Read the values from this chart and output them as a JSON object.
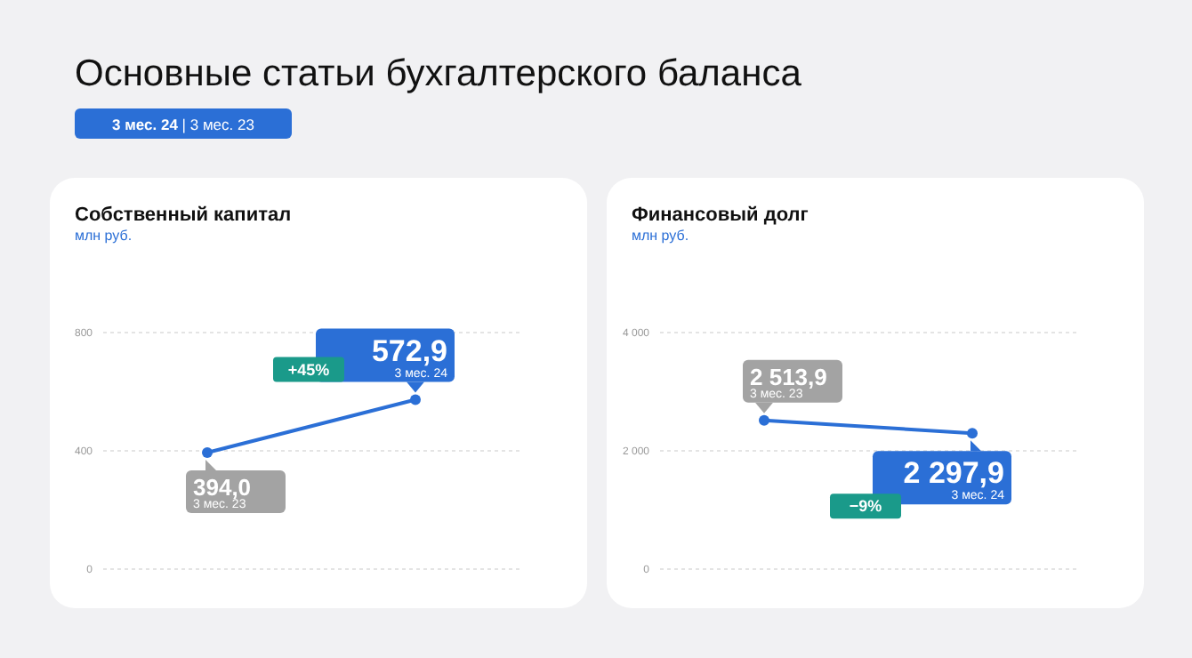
{
  "chart_data": [
    {
      "type": "line",
      "title": "Собственный капитал",
      "subtitle": "млн руб.",
      "annotations": [
        "Основные статьи бухгалтерского баланса",
        "3 мес. 24 | 3 мес. 23",
        "+45%"
      ],
      "categories": [
        "3 мес. 23",
        "3 мес. 24"
      ],
      "series": [
        {
          "color": "#2b6fd6",
          "values": [
            394.0,
            572.9
          ],
          "value_labels": [
            "394,0",
            "572,9"
          ]
        }
      ],
      "ylim": [
        0,
        800
      ],
      "yticks": [
        0,
        400,
        800
      ],
      "grid": "y",
      "marker": "circle",
      "line_style": "solid"
    },
    {
      "type": "line",
      "title": "Финансовый долг",
      "subtitle": "млн руб.",
      "annotations": [
        "−9%"
      ],
      "categories": [
        "3 мес. 23",
        "3 мес. 24"
      ],
      "series": [
        {
          "color": "#2b6fd6",
          "values": [
            2513.9,
            2297.9
          ],
          "value_labels": [
            "2 513,9",
            "2 297,9"
          ]
        }
      ],
      "ylim": [
        0,
        4000
      ],
      "yticks": [
        0,
        {
          "value": 2000,
          "label": "2 000"
        },
        {
          "value": 4000,
          "label": "4 000"
        }
      ],
      "grid": "y",
      "marker": "circle",
      "line_style": "solid"
    }
  ]
}
